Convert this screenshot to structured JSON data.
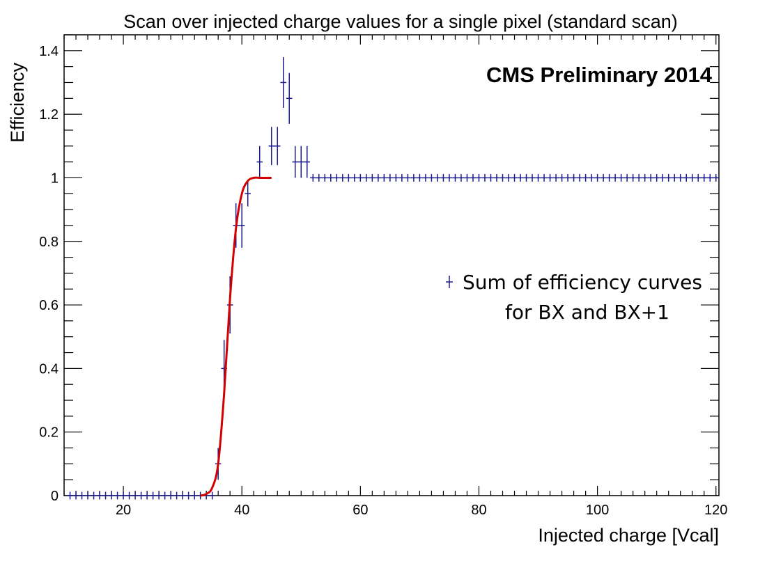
{
  "chart_data": {
    "type": "scatter",
    "title": "Scan over injected charge values for a single pixel (standard scan)",
    "xlabel": "Injected charge [Vcal]",
    "ylabel": "Efficiency",
    "annotation": "CMS Preliminary 2014",
    "xlim": [
      10,
      120.5
    ],
    "ylim": [
      0,
      1.45
    ],
    "x_ticks": [
      20,
      40,
      60,
      80,
      100,
      120
    ],
    "y_ticks": [
      0,
      0.2,
      0.4,
      0.6,
      0.8,
      1,
      1.2,
      1.4
    ],
    "y_tick_labels": [
      "0",
      "0.2",
      "0.4",
      "0.6",
      "0.8",
      "1",
      "1.2",
      "1.4"
    ],
    "legend": {
      "position": "center-right",
      "lines": [
        "Sum of efficiency curves",
        "for BX and BX+1"
      ]
    },
    "series": [
      {
        "name": "Sum of efficiency curves for BX and BX+1",
        "color": "#1a1a8c",
        "x_error": 0.5,
        "points": [
          [
            11,
            0,
            0
          ],
          [
            12,
            0,
            0
          ],
          [
            13,
            0,
            0
          ],
          [
            14,
            0,
            0
          ],
          [
            15,
            0,
            0
          ],
          [
            16,
            0,
            0
          ],
          [
            17,
            0,
            0
          ],
          [
            18,
            0,
            0
          ],
          [
            19,
            0,
            0
          ],
          [
            20,
            0,
            0
          ],
          [
            21,
            0,
            0
          ],
          [
            22,
            0,
            0
          ],
          [
            23,
            0,
            0
          ],
          [
            24,
            0,
            0
          ],
          [
            25,
            0,
            0
          ],
          [
            26,
            0,
            0
          ],
          [
            27,
            0,
            0
          ],
          [
            28,
            0,
            0
          ],
          [
            29,
            0,
            0
          ],
          [
            30,
            0,
            0
          ],
          [
            31,
            0,
            0
          ],
          [
            32,
            0,
            0
          ],
          [
            33,
            0,
            0
          ],
          [
            34,
            0,
            0
          ],
          [
            35,
            0,
            0
          ],
          [
            36,
            0.1,
            0.05
          ],
          [
            37,
            0.4,
            0.09
          ],
          [
            38,
            0.6,
            0.09
          ],
          [
            39,
            0.85,
            0.07
          ],
          [
            40,
            0.85,
            0.07
          ],
          [
            41,
            0.95,
            0.04
          ],
          [
            43,
            1.05,
            0.05
          ],
          [
            45,
            1.1,
            0.06
          ],
          [
            46,
            1.1,
            0.06
          ],
          [
            47,
            1.3,
            0.08
          ],
          [
            48,
            1.25,
            0.08
          ],
          [
            49,
            1.05,
            0.05
          ],
          [
            50,
            1.05,
            0.05
          ],
          [
            51,
            1.05,
            0.05
          ],
          [
            52,
            1,
            0
          ],
          [
            53,
            1,
            0
          ],
          [
            54,
            1,
            0
          ],
          [
            55,
            1,
            0
          ],
          [
            56,
            1,
            0
          ],
          [
            57,
            1,
            0
          ],
          [
            58,
            1,
            0
          ],
          [
            59,
            1,
            0
          ],
          [
            60,
            1,
            0
          ],
          [
            61,
            1,
            0
          ],
          [
            62,
            1,
            0
          ],
          [
            63,
            1,
            0
          ],
          [
            64,
            1,
            0
          ],
          [
            65,
            1,
            0
          ],
          [
            66,
            1,
            0
          ],
          [
            67,
            1,
            0
          ],
          [
            68,
            1,
            0
          ],
          [
            69,
            1,
            0
          ],
          [
            70,
            1,
            0
          ],
          [
            71,
            1,
            0
          ],
          [
            72,
            1,
            0
          ],
          [
            73,
            1,
            0
          ],
          [
            74,
            1,
            0
          ],
          [
            75,
            1,
            0
          ],
          [
            76,
            1,
            0
          ],
          [
            77,
            1,
            0
          ],
          [
            78,
            1,
            0
          ],
          [
            79,
            1,
            0
          ],
          [
            80,
            1,
            0
          ],
          [
            81,
            1,
            0
          ],
          [
            82,
            1,
            0
          ],
          [
            83,
            1,
            0
          ],
          [
            84,
            1,
            0
          ],
          [
            85,
            1,
            0
          ],
          [
            86,
            1,
            0
          ],
          [
            87,
            1,
            0
          ],
          [
            88,
            1,
            0
          ],
          [
            89,
            1,
            0
          ],
          [
            90,
            1,
            0
          ],
          [
            91,
            1,
            0
          ],
          [
            92,
            1,
            0
          ],
          [
            93,
            1,
            0
          ],
          [
            94,
            1,
            0
          ],
          [
            95,
            1,
            0
          ],
          [
            96,
            1,
            0
          ],
          [
            97,
            1,
            0
          ],
          [
            98,
            1,
            0
          ],
          [
            99,
            1,
            0
          ],
          [
            100,
            1,
            0
          ],
          [
            101,
            1,
            0
          ],
          [
            102,
            1,
            0
          ],
          [
            103,
            1,
            0
          ],
          [
            104,
            1,
            0
          ],
          [
            105,
            1,
            0
          ],
          [
            106,
            1,
            0
          ],
          [
            107,
            1,
            0
          ],
          [
            108,
            1,
            0
          ],
          [
            109,
            1,
            0
          ],
          [
            110,
            1,
            0
          ],
          [
            111,
            1,
            0
          ],
          [
            112,
            1,
            0
          ],
          [
            113,
            1,
            0
          ],
          [
            114,
            1,
            0
          ],
          [
            115,
            1,
            0
          ],
          [
            116,
            1,
            0
          ],
          [
            117,
            1,
            0
          ],
          [
            118,
            1,
            0
          ],
          [
            119,
            1,
            0
          ],
          [
            120,
            1,
            0
          ]
        ]
      }
    ],
    "fit": {
      "type": "line",
      "color": "#d40000",
      "x_range": [
        33,
        45
      ],
      "points": [
        [
          33,
          0.0
        ],
        [
          34,
          0.005
        ],
        [
          35,
          0.025
        ],
        [
          36,
          0.1
        ],
        [
          37,
          0.32
        ],
        [
          38,
          0.62
        ],
        [
          39,
          0.84
        ],
        [
          40,
          0.95
        ],
        [
          41,
          0.99
        ],
        [
          42,
          1.0
        ],
        [
          43,
          1.0
        ],
        [
          44,
          1.0
        ],
        [
          45,
          1.0
        ]
      ]
    }
  }
}
